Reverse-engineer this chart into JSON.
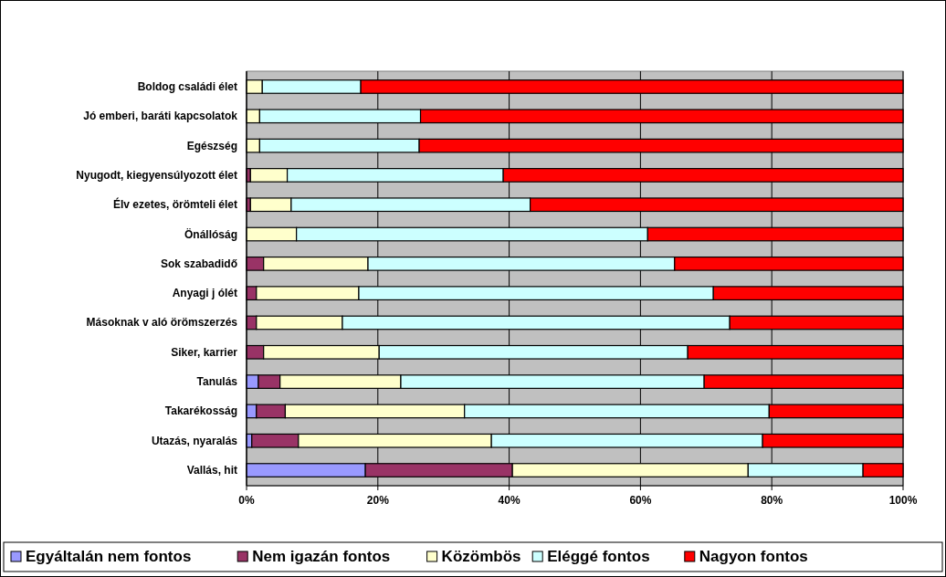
{
  "chart_data": {
    "type": "bar",
    "orientation": "horizontal",
    "stacked": true,
    "categories": [
      "Boldog családi élet",
      "Jó emberi, baráti kapcsolatok",
      "Egészség",
      "Nyugodt, kiegyensúlyozott élet",
      "Élv ezetes, örömteli élet",
      "Önállóság",
      "Sok szabadidő",
      "Anyagi j ólét",
      "Másoknak v aló örömszerzés",
      "Siker, karrier",
      "Tanulás",
      "Takarékosság",
      "Utazás, nyaralás",
      "Vallás, hit"
    ],
    "series": [
      {
        "name": "Egyáltalán nem fontos",
        "color": "#9999ff",
        "values": [
          0,
          0,
          0,
          0,
          0,
          0,
          0,
          0,
          0,
          null,
          1.8,
          1.5,
          0.8,
          18.1
        ]
      },
      {
        "name": "Nem igazán fontos",
        "color": "#993366",
        "values": [
          null,
          0,
          0,
          0.6,
          0.6,
          null,
          2.6,
          1.5,
          1.5,
          2.6,
          3.3,
          4.4,
          7.1,
          22.4
        ]
      },
      {
        "name": "Közömbös",
        "color": "#ffffcc",
        "values": [
          2.4,
          2.0,
          2.0,
          5.6,
          6.2,
          7.6,
          15.9,
          15.6,
          13.1,
          17.6,
          18.4,
          27.3,
          29.4,
          35.9
        ]
      },
      {
        "name": "Eléggé fontos",
        "color": "#ccffff",
        "values": [
          15.0,
          24.5,
          24.3,
          32.9,
          36.4,
          53.5,
          46.7,
          54.0,
          59.0,
          47.0,
          46.2,
          46.4,
          41.3,
          17.5
        ]
      },
      {
        "name": "Nagyon fontos",
        "color": "#ff0000",
        "values": [
          82.6,
          73.5,
          73.7,
          60.9,
          56.8,
          38.9,
          34.8,
          28.9,
          26.4,
          32.8,
          30.3,
          20.4,
          21.4,
          6.1
        ]
      }
    ],
    "xlim": [
      0,
      100
    ],
    "xticks": [
      {
        "value": 0,
        "label": "0%"
      },
      {
        "value": 20,
        "label": "20%"
      },
      {
        "value": 40,
        "label": "40%"
      },
      {
        "value": 60,
        "label": "60%"
      },
      {
        "value": 80,
        "label": "80%"
      },
      {
        "value": 100,
        "label": "100%"
      }
    ],
    "grid": "x",
    "legend": "bottom"
  }
}
